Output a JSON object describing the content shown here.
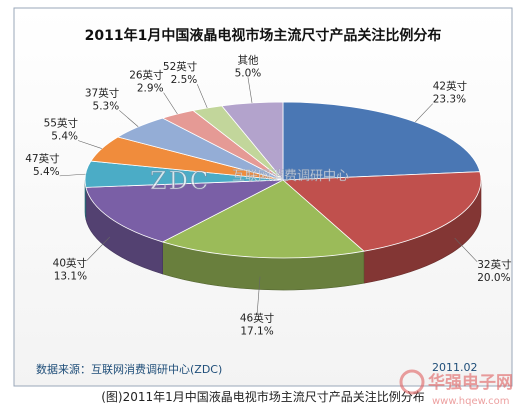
{
  "chart_data": {
    "type": "pie",
    "title": "2011年1月中国液晶电视市场主流尺寸产品关注比例分布",
    "slices": [
      {
        "label": "42英寸",
        "value": 23.3,
        "value_label": "23.3%",
        "color": "#4a77b4"
      },
      {
        "label": "32英寸",
        "value": 20.0,
        "value_label": "20.0%",
        "color": "#c0504d"
      },
      {
        "label": "46英寸",
        "value": 17.1,
        "value_label": "17.1%",
        "color": "#9bbb59"
      },
      {
        "label": "40英寸",
        "value": 13.1,
        "value_label": "13.1%",
        "color": "#7a5fa6"
      },
      {
        "label": "47英寸",
        "value": 5.4,
        "value_label": "5.4%",
        "color": "#4bacc6"
      },
      {
        "label": "55英寸",
        "value": 5.4,
        "value_label": "5.4%",
        "color": "#f08c3c"
      },
      {
        "label": "37英寸",
        "value": 5.3,
        "value_label": "5.3%",
        "color": "#94add6"
      },
      {
        "label": "26英寸",
        "value": 2.9,
        "value_label": "2.9%",
        "color": "#e59a95"
      },
      {
        "label": "52英寸",
        "value": 2.5,
        "value_label": "2.5%",
        "color": "#c2d69b"
      },
      {
        "label": "其他",
        "value": 5.0,
        "value_label": "5.0%",
        "color": "#b3a3cc"
      }
    ]
  },
  "watermark": {
    "logo": "ZDC",
    "name": "互联网消费调研中心"
  },
  "source_text": "数据来源：互联网消费调研中心(ZDC)",
  "date_text": "2011.02",
  "caption": "(图)2011年1月中国液晶电视市场主流尺寸产品关注比例分布",
  "site_watermark": {
    "brand": "华强电子网",
    "url": "www.hqew.com"
  }
}
